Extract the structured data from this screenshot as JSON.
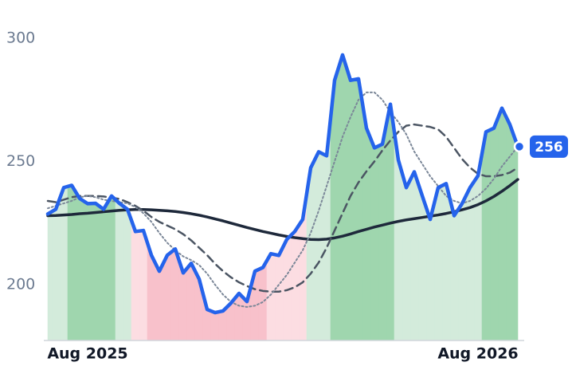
{
  "chart_data": {
    "type": "line",
    "categories": [
      null,
      null,
      null,
      null,
      null,
      "Aug 2025",
      null,
      null,
      null,
      null,
      null,
      null,
      null,
      null,
      null,
      null,
      null,
      null,
      null,
      null,
      null,
      null,
      null,
      null,
      null,
      null,
      null,
      null,
      null,
      null,
      null,
      null,
      null,
      null,
      null,
      null,
      null,
      null,
      null,
      null,
      null,
      null,
      null,
      null,
      null,
      null,
      null,
      null,
      null,
      null,
      null,
      null,
      null,
      null,
      "Aug 2026",
      null,
      null,
      null,
      null,
      null
    ],
    "ylim": [
      177.4,
      309
    ],
    "yticks": [
      200,
      250,
      300
    ],
    "series": [
      {
        "color": "#2563eb",
        "style": "solid",
        "width": 4.5,
        "values": [
          228.7,
          230.6,
          239.4,
          240.3,
          235,
          232.9,
          233,
          230.6,
          236,
          233,
          230.6,
          221.6,
          222,
          212,
          205.5,
          212,
          214.5,
          204.8,
          208.7,
          202.3,
          190,
          188.7,
          189.4,
          192.6,
          196.5,
          193.2,
          205.5,
          207,
          212.6,
          211.9,
          218.4,
          221.6,
          226.5,
          247.4,
          253.9,
          252.3,
          282.9,
          293.2,
          282.9,
          283.5,
          263.5,
          255.5,
          257,
          273.2,
          250.6,
          239.4,
          245.8,
          236.1,
          226.5,
          239.4,
          241,
          228,
          232.9,
          239.4,
          244.2,
          262,
          263.5,
          271.6,
          265,
          256
        ],
        "area_colors": [
          "#d3ebdb",
          "#d3ebdb",
          "#d3ebdb",
          "#9fd6ae",
          "#9fd6ae",
          "#9fd6ae",
          "#9fd6ae",
          "#9fd6ae",
          "#9fd6ae",
          "#d3ebdb",
          "#d3ebdb",
          "#fcdde2",
          "#fcdde2",
          "#f8c1cb",
          "#f8c1cb",
          "#f8c1cb",
          "#f8c1cb",
          "#f8c1cb",
          "#f8c1cb",
          "#f8c1cb",
          "#f8c1cb",
          "#f8c1cb",
          "#f8c1cb",
          "#f8c1cb",
          "#f8c1cb",
          "#f8c1cb",
          "#f8c1cb",
          "#f8c1cb",
          "#fcdde2",
          "#fcdde2",
          "#fcdde2",
          "#fcdde2",
          "#fcdde2",
          "#d3ebdb",
          "#d3ebdb",
          "#d3ebdb",
          "#9fd6ae",
          "#9fd6ae",
          "#9fd6ae",
          "#9fd6ae",
          "#9fd6ae",
          "#9fd6ae",
          "#9fd6ae",
          "#9fd6ae",
          "#d3ebdb",
          "#d3ebdb",
          "#d3ebdb",
          "#d3ebdb",
          "#d3ebdb",
          "#d3ebdb",
          "#d3ebdb",
          "#d3ebdb",
          "#d3ebdb",
          "#d3ebdb",
          "#d3ebdb",
          "#9fd6ae",
          "#9fd6ae",
          "#9fd6ae",
          "#9fd6ae",
          "#9fd6ae"
        ]
      },
      {
        "color": "#7b8798",
        "style": "dotted",
        "width": 2,
        "values": [
          231,
          232,
          233,
          234,
          235.5,
          236,
          235.5,
          234.5,
          234,
          233.5,
          233,
          231.5,
          229,
          225.5,
          221,
          217,
          214,
          211.5,
          210,
          208,
          204.5,
          200,
          196,
          193,
          191.5,
          191,
          191.5,
          193,
          196,
          200,
          204,
          209,
          214,
          221,
          230,
          240,
          250,
          260,
          268,
          275,
          278,
          278,
          275,
          270,
          266,
          261,
          254,
          249,
          244,
          240,
          236,
          234,
          233,
          234,
          236,
          239,
          243,
          248,
          252,
          256
        ]
      },
      {
        "color": "#4b5563",
        "style": "dashed",
        "width": 2.5,
        "values": [
          234,
          233.5,
          234.5,
          235.5,
          236,
          236,
          236,
          235.8,
          235.3,
          234.8,
          233.5,
          232,
          230,
          227.5,
          225.5,
          224,
          222.5,
          220.5,
          218,
          215,
          212,
          208.5,
          205.5,
          203,
          201,
          199.5,
          198.2,
          197.5,
          197.2,
          197.2,
          197.8,
          199,
          201,
          204.5,
          209,
          215,
          222,
          229,
          236,
          241.5,
          246,
          250,
          254.5,
          258.5,
          262,
          264.5,
          265,
          264.5,
          264,
          263,
          260,
          255.5,
          251,
          247.5,
          245,
          244,
          244,
          244.5,
          245.5,
          247.5
        ]
      },
      {
        "color": "#1e293b",
        "style": "solid",
        "width": 3.5,
        "values": [
          228,
          228.1,
          228.3,
          228.5,
          228.8,
          229,
          229.3,
          229.6,
          229.9,
          230.2,
          230.4,
          230.5,
          230.5,
          230.4,
          230.2,
          230,
          229.7,
          229.3,
          228.8,
          228.2,
          227.5,
          226.7,
          225.9,
          225,
          224.1,
          223.2,
          222.4,
          221.6,
          220.9,
          220.2,
          219.6,
          219.1,
          218.7,
          218.4,
          218.3,
          218.5,
          219,
          219.7,
          220.6,
          221.6,
          222.5,
          223.4,
          224.2,
          225,
          225.7,
          226.3,
          226.8,
          227.3,
          227.8,
          228.3,
          228.9,
          229.6,
          230.4,
          231.3,
          232.5,
          234,
          235.8,
          237.9,
          240.2,
          242.7
        ]
      }
    ]
  }
}
